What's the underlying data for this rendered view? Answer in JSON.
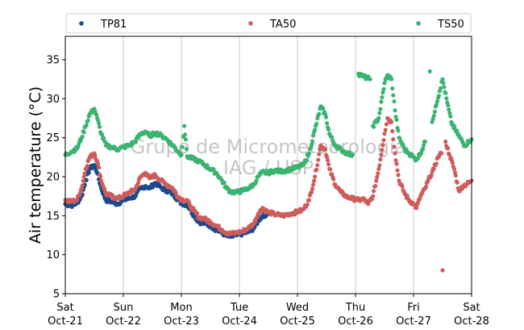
{
  "watermark": {
    "line1": "Grupo de Micrometeorologia",
    "line2": "IAG / USP"
  },
  "chart_data": {
    "type": "scatter",
    "ylabel": "Air temperature (°C)",
    "xlabel": "",
    "ylim": [
      5,
      38
    ],
    "xlim": [
      0,
      7
    ],
    "yticks": [
      5,
      10,
      15,
      20,
      25,
      30,
      35
    ],
    "xticks": [
      {
        "x": 0,
        "day": "Sat",
        "date": "Oct-21"
      },
      {
        "x": 1,
        "day": "Sun",
        "date": "Oct-22"
      },
      {
        "x": 2,
        "day": "Mon",
        "date": "Oct-23"
      },
      {
        "x": 3,
        "day": "Tue",
        "date": "Oct-24"
      },
      {
        "x": 4,
        "day": "Wed",
        "date": "Oct-25"
      },
      {
        "x": 5,
        "day": "Thu",
        "date": "Oct-26"
      },
      {
        "x": 6,
        "day": "Fri",
        "date": "Oct-27"
      },
      {
        "x": 7,
        "day": "Sat",
        "date": "Oct-28"
      }
    ],
    "grid": "vertical",
    "legend_position": "top",
    "series": [
      {
        "name": "TP81",
        "color": "#1a4a8a",
        "points": [
          [
            0.0,
            16.5
          ],
          [
            0.1,
            16.3
          ],
          [
            0.2,
            16.6
          ],
          [
            0.28,
            17.5
          ],
          [
            0.35,
            19.5
          ],
          [
            0.42,
            21.0
          ],
          [
            0.5,
            21.5
          ],
          [
            0.55,
            20.5
          ],
          [
            0.62,
            18.5
          ],
          [
            0.7,
            17.0
          ],
          [
            0.8,
            16.8
          ],
          [
            0.9,
            16.5
          ],
          [
            1.0,
            17.0
          ],
          [
            1.1,
            17.2
          ],
          [
            1.2,
            17.5
          ],
          [
            1.3,
            18.5
          ],
          [
            1.38,
            18.8
          ],
          [
            1.45,
            18.5
          ],
          [
            1.55,
            19.2
          ],
          [
            1.65,
            18.6
          ],
          [
            1.75,
            18.2
          ],
          [
            1.85,
            17.8
          ],
          [
            1.95,
            17.0
          ],
          [
            2.0,
            16.6
          ],
          [
            2.1,
            16.4
          ],
          [
            2.15,
            15.8
          ],
          [
            2.22,
            15.0
          ],
          [
            2.3,
            14.2
          ],
          [
            2.4,
            14.0
          ],
          [
            2.5,
            13.7
          ],
          [
            2.6,
            13.2
          ],
          [
            2.7,
            12.8
          ],
          [
            2.78,
            12.4
          ],
          [
            2.85,
            12.3
          ],
          [
            2.95,
            12.5
          ],
          [
            3.05,
            12.7
          ],
          [
            3.15,
            12.9
          ],
          [
            3.25,
            13.4
          ],
          [
            3.32,
            14.3
          ],
          [
            3.4,
            15.0
          ],
          [
            3.48,
            15.2
          ]
        ]
      },
      {
        "name": "TA50",
        "color": "#cd5c5c",
        "points": [
          [
            0.0,
            17.0
          ],
          [
            0.1,
            16.8
          ],
          [
            0.2,
            17.0
          ],
          [
            0.28,
            18.5
          ],
          [
            0.35,
            21.0
          ],
          [
            0.42,
            22.5
          ],
          [
            0.5,
            23.0
          ],
          [
            0.55,
            22.0
          ],
          [
            0.62,
            19.5
          ],
          [
            0.7,
            17.8
          ],
          [
            0.8,
            17.5
          ],
          [
            0.9,
            17.2
          ],
          [
            1.0,
            17.5
          ],
          [
            1.1,
            18.0
          ],
          [
            1.2,
            18.3
          ],
          [
            1.3,
            20.0
          ],
          [
            1.38,
            20.5
          ],
          [
            1.45,
            19.8
          ],
          [
            1.55,
            20.2
          ],
          [
            1.65,
            19.5
          ],
          [
            1.75,
            19.0
          ],
          [
            1.85,
            18.5
          ],
          [
            1.95,
            17.4
          ],
          [
            2.0,
            17.1
          ],
          [
            2.1,
            16.9
          ],
          [
            2.15,
            16.3
          ],
          [
            2.22,
            15.6
          ],
          [
            2.3,
            14.8
          ],
          [
            2.4,
            14.6
          ],
          [
            2.5,
            14.2
          ],
          [
            2.6,
            13.7
          ],
          [
            2.7,
            13.2
          ],
          [
            2.78,
            12.8
          ],
          [
            2.85,
            12.7
          ],
          [
            2.95,
            12.8
          ],
          [
            3.05,
            13.0
          ],
          [
            3.15,
            13.4
          ],
          [
            3.25,
            14.0
          ],
          [
            3.32,
            15.2
          ],
          [
            3.4,
            16.0
          ],
          [
            3.48,
            15.5
          ],
          [
            3.6,
            15.2
          ],
          [
            3.75,
            15.0
          ],
          [
            3.9,
            15.3
          ],
          [
            4.0,
            15.5
          ],
          [
            4.1,
            15.8
          ],
          [
            4.2,
            17.0
          ],
          [
            4.3,
            20.0
          ],
          [
            4.4,
            24.0
          ],
          [
            4.48,
            23.5
          ],
          [
            4.55,
            21.0
          ],
          [
            4.65,
            19.0
          ],
          [
            4.75,
            18.0
          ],
          [
            4.85,
            17.4
          ],
          [
            4.95,
            17.2
          ],
          [
            5.05,
            17.0
          ],
          [
            5.15,
            17.1
          ],
          [
            5.22,
            16.5
          ],
          [
            5.3,
            17.5
          ],
          [
            5.4,
            21.0
          ],
          [
            5.5,
            25.5
          ],
          [
            5.55,
            27.5
          ],
          [
            5.62,
            27.0
          ],
          [
            5.68,
            23.0
          ],
          [
            5.75,
            19.5
          ],
          [
            5.85,
            17.8
          ],
          [
            5.92,
            17.0
          ],
          [
            6.0,
            16.5
          ],
          [
            6.05,
            16.0
          ],
          [
            6.12,
            17.5
          ],
          [
            6.2,
            18.5
          ],
          [
            6.28,
            20.0
          ],
          [
            6.35,
            21.0
          ],
          [
            6.42,
            22.5
          ],
          [
            6.48,
            23.0
          ],
          [
            6.55,
            24.5
          ],
          [
            6.62,
            22.8
          ],
          [
            6.7,
            21.0
          ],
          [
            6.78,
            18.2
          ],
          [
            6.85,
            18.8
          ],
          [
            6.95,
            19.2
          ],
          [
            7.0,
            19.5
          ],
          [
            6.5,
            8.0
          ]
        ]
      },
      {
        "name": "TS50",
        "color": "#3cb371",
        "points": [
          [
            0.0,
            22.8
          ],
          [
            0.1,
            23.2
          ],
          [
            0.2,
            23.6
          ],
          [
            0.28,
            25.0
          ],
          [
            0.35,
            26.5
          ],
          [
            0.42,
            28.0
          ],
          [
            0.5,
            28.7
          ],
          [
            0.55,
            27.5
          ],
          [
            0.62,
            25.5
          ],
          [
            0.7,
            24.0
          ],
          [
            0.8,
            23.8
          ],
          [
            0.9,
            23.5
          ],
          [
            1.0,
            23.8
          ],
          [
            1.1,
            24.0
          ],
          [
            1.2,
            24.5
          ],
          [
            1.3,
            25.5
          ],
          [
            1.38,
            25.8
          ],
          [
            1.45,
            25.2
          ],
          [
            1.55,
            25.6
          ],
          [
            1.65,
            25.3
          ],
          [
            1.75,
            24.8
          ],
          [
            1.85,
            24.0
          ],
          [
            1.95,
            23.2
          ],
          [
            2.0,
            22.8
          ],
          [
            2.05,
            26.5
          ],
          [
            2.1,
            22.6
          ],
          [
            2.2,
            22.3
          ],
          [
            2.3,
            22.0
          ],
          [
            2.4,
            21.5
          ],
          [
            2.5,
            21.0
          ],
          [
            2.6,
            20.5
          ],
          [
            2.7,
            19.5
          ],
          [
            2.78,
            18.5
          ],
          [
            2.85,
            18.1
          ],
          [
            2.95,
            18.0
          ],
          [
            3.05,
            18.2
          ],
          [
            3.15,
            18.5
          ],
          [
            3.25,
            19.0
          ],
          [
            3.32,
            20.0
          ],
          [
            3.4,
            20.6
          ],
          [
            3.5,
            20.5
          ],
          [
            3.6,
            20.8
          ],
          [
            3.7,
            20.7
          ],
          [
            3.8,
            20.8
          ],
          [
            3.9,
            21.0
          ],
          [
            4.0,
            21.2
          ],
          [
            4.1,
            21.5
          ],
          [
            4.2,
            23.0
          ],
          [
            4.3,
            26.0
          ],
          [
            4.4,
            29.0
          ],
          [
            4.48,
            28.0
          ],
          [
            4.55,
            25.5
          ],
          [
            4.65,
            24.0
          ],
          [
            4.75,
            23.5
          ],
          [
            4.85,
            23.0
          ],
          [
            4.95,
            22.8
          ],
          [
            5.05,
            33.2
          ],
          [
            5.15,
            32.8
          ],
          [
            5.25,
            32.5
          ],
          [
            5.3,
            26.5
          ],
          [
            5.4,
            27.5
          ],
          [
            5.5,
            32.0
          ],
          [
            5.55,
            33.0
          ],
          [
            5.62,
            32.5
          ],
          [
            5.68,
            28.5
          ],
          [
            5.75,
            25.0
          ],
          [
            5.85,
            23.5
          ],
          [
            5.92,
            23.0
          ],
          [
            6.0,
            22.5
          ],
          [
            6.05,
            22.2
          ],
          [
            6.12,
            23.0
          ],
          [
            6.2,
            24.5
          ],
          [
            6.28,
            33.5
          ],
          [
            6.32,
            27.0
          ],
          [
            6.38,
            29.0
          ],
          [
            6.45,
            31.0
          ],
          [
            6.5,
            32.5
          ],
          [
            6.58,
            29.5
          ],
          [
            6.65,
            27.0
          ],
          [
            6.72,
            26.0
          ],
          [
            6.8,
            25.0
          ],
          [
            6.88,
            24.0
          ],
          [
            6.95,
            24.5
          ],
          [
            7.0,
            24.8
          ]
        ]
      }
    ]
  }
}
